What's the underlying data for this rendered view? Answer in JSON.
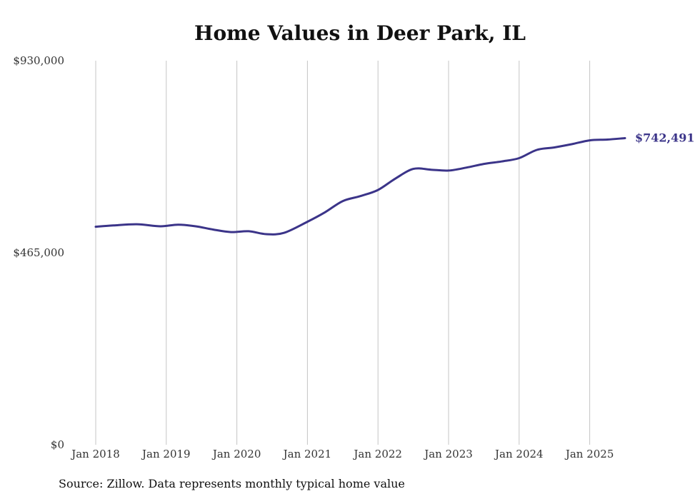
{
  "chart_data": {
    "type": "line",
    "title": "Home Values in Deer Park, IL",
    "source": "Source: Zillow. Data represents monthly typical home value",
    "xlabel": "",
    "ylabel": "",
    "x_ticks": [
      "Jan 2018",
      "Jan 2019",
      "Jan 2020",
      "Jan 2021",
      "Jan 2022",
      "Jan 2023",
      "Jan 2024",
      "Jan 2025"
    ],
    "y_ticks": [
      "$930,000",
      "$465,000",
      "$0"
    ],
    "ylim": [
      0,
      930000
    ],
    "grid": "vertical",
    "line_color": "#3b3489",
    "end_label": "$742,491",
    "series": [
      {
        "x": [
          "2018-01",
          "2018-04",
          "2018-08",
          "2018-12",
          "2019-03",
          "2019-06",
          "2019-09",
          "2019-12",
          "2020-03",
          "2020-06",
          "2020-09",
          "2021-01",
          "2021-04",
          "2021-07",
          "2021-10",
          "2022-01",
          "2022-04",
          "2022-07",
          "2022-10",
          "2023-01",
          "2023-04",
          "2023-07",
          "2023-10",
          "2024-01",
          "2024-04",
          "2024-07",
          "2024-10",
          "2025-01",
          "2025-04",
          "2025-07"
        ],
        "values": [
          528000,
          531000,
          534000,
          529000,
          533000,
          529000,
          521000,
          515000,
          517000,
          510000,
          513000,
          540000,
          563000,
          590000,
          602000,
          617000,
          645000,
          668000,
          666000,
          664000,
          671000,
          680000,
          686000,
          694000,
          714000,
          720000,
          728000,
          737000,
          739000,
          742491
        ]
      }
    ]
  }
}
